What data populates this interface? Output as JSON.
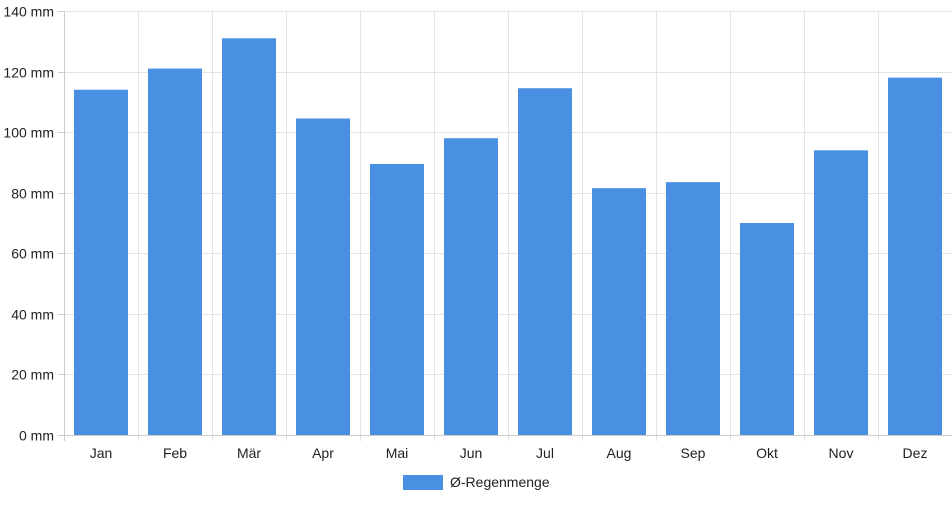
{
  "chart_data": {
    "type": "bar",
    "categories": [
      "Jan",
      "Feb",
      "Mär",
      "Apr",
      "Mai",
      "Jun",
      "Jul",
      "Aug",
      "Sep",
      "Okt",
      "Nov",
      "Dez"
    ],
    "series": [
      {
        "name": "Ø-Regenmenge",
        "values": [
          114,
          121,
          131,
          104.5,
          89.5,
          98,
          114.5,
          81.5,
          83.5,
          70,
          94,
          118
        ],
        "color": "#4a90e2"
      }
    ],
    "ylim": [
      0,
      140
    ],
    "y_ticks": [
      0,
      20,
      40,
      60,
      80,
      100,
      120,
      140
    ],
    "y_tick_labels": [
      "0 mm",
      "20 mm",
      "40 mm",
      "60 mm",
      "80 mm",
      "100 mm",
      "120 mm",
      "140 mm"
    ],
    "grid": true,
    "legend_position": "bottom"
  }
}
